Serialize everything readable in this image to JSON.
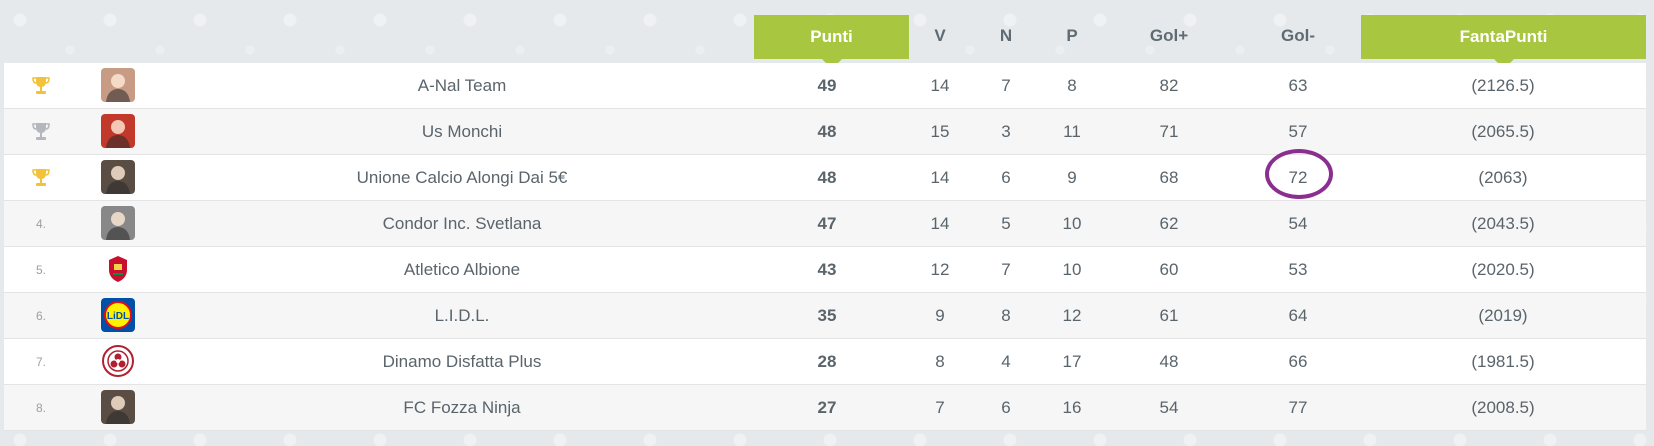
{
  "header": {
    "punti": "Punti",
    "v": "V",
    "n": "N",
    "p": "P",
    "gol_plus": "Gol+",
    "gol_minus": "Gol-",
    "fantapunti": "FantaPunti"
  },
  "colors": {
    "accent_green": "#a8c63f",
    "gold_trophy": "#f2c23a",
    "silver_trophy": "#b4b8bc",
    "highlight_circle": "#8a2f8f"
  },
  "rows": [
    {
      "rank": "",
      "trophy": "gold",
      "avatar": "avatar-photo-icon",
      "team": "A-Nal Team",
      "punti": "49",
      "v": "14",
      "n": "7",
      "p": "8",
      "gol_plus": "82",
      "gol_minus": "63",
      "fantapunti": "(2126.5)"
    },
    {
      "rank": "",
      "trophy": "silver",
      "avatar": "avatar-photo-icon",
      "team": "Us Monchi",
      "punti": "48",
      "v": "15",
      "n": "3",
      "p": "11",
      "gol_plus": "71",
      "gol_minus": "57",
      "fantapunti": "(2065.5)"
    },
    {
      "rank": "",
      "trophy": "gold",
      "avatar": "avatar-photo-icon",
      "team": "Unione Calcio Alongi Dai 5€",
      "punti": "48",
      "v": "14",
      "n": "6",
      "p": "9",
      "gol_plus": "68",
      "gol_minus": "72",
      "fantapunti": "(2063)"
    },
    {
      "rank": "4.",
      "trophy": "",
      "avatar": "avatar-photo-icon",
      "team": "Condor Inc. Svetlana",
      "punti": "47",
      "v": "14",
      "n": "5",
      "p": "10",
      "gol_plus": "62",
      "gol_minus": "54",
      "fantapunti": "(2043.5)"
    },
    {
      "rank": "5.",
      "trophy": "",
      "avatar": "liverpool-crest-icon",
      "team": "Atletico Albione",
      "punti": "43",
      "v": "12",
      "n": "7",
      "p": "10",
      "gol_plus": "60",
      "gol_minus": "53",
      "fantapunti": "(2020.5)"
    },
    {
      "rank": "6.",
      "trophy": "",
      "avatar": "lidl-logo-icon",
      "team": "L.I.D.L.",
      "punti": "35",
      "v": "9",
      "n": "8",
      "p": "12",
      "gol_plus": "61",
      "gol_minus": "64",
      "fantapunti": "(2019)"
    },
    {
      "rank": "7.",
      "trophy": "",
      "avatar": "biohazard-badge-icon",
      "team": "Dinamo Disfatta Plus",
      "punti": "28",
      "v": "8",
      "n": "4",
      "p": "17",
      "gol_plus": "48",
      "gol_minus": "66",
      "fantapunti": "(1981.5)"
    },
    {
      "rank": "8.",
      "trophy": "",
      "avatar": "avatar-photo-icon",
      "team": "FC Fozza Ninja",
      "punti": "27",
      "v": "7",
      "n": "6",
      "p": "16",
      "gol_plus": "54",
      "gol_minus": "77",
      "fantapunti": "(2008.5)"
    }
  ]
}
